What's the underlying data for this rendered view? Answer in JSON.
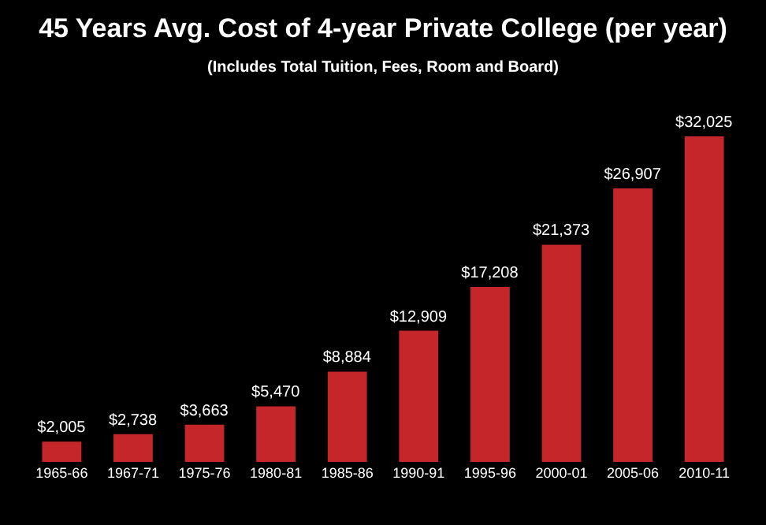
{
  "chart_data": {
    "type": "bar",
    "title": "45 Years Avg. Cost of 4-year Private College (per year)",
    "subtitle": "(Includes Total Tuition, Fees, Room and Board)",
    "categories": [
      "1965-66",
      "1967-71",
      "1975-76",
      "1980-81",
      "1985-86",
      "1990-91",
      "1995-96",
      "2000-01",
      "2005-06",
      "2010-11"
    ],
    "values": [
      2005,
      2738,
      3663,
      5470,
      8884,
      12909,
      17208,
      21373,
      26907,
      32025
    ],
    "value_labels": [
      "$2,005",
      "$2,738",
      "$3,663",
      "$5,470",
      "$8,884",
      "$12,909",
      "$17,208",
      "$21,373",
      "$26,907",
      "$32,025"
    ],
    "color": "#c4262a",
    "grid": false,
    "legend": false,
    "tick_labels": "x"
  }
}
